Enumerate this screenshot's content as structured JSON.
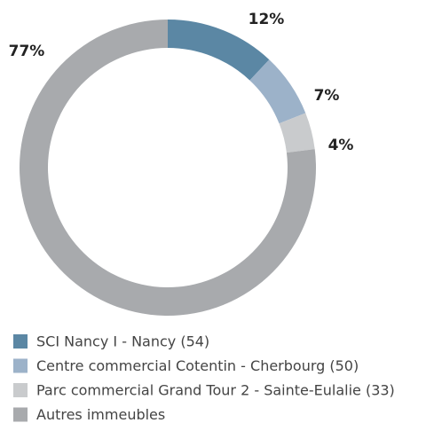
{
  "chart_data": {
    "type": "donut",
    "categories": [
      "SCI Nancy I - Nancy (54)",
      "Centre commercial Cotentin - Cherbourg (50)",
      "Parc commercial Grand Tour 2 - Sainte-Eulalie (33)",
      "Autres immeubles"
    ],
    "values": [
      12,
      7,
      4,
      77
    ],
    "value_labels": [
      "12%",
      "7%",
      "4%",
      "77%"
    ],
    "colors": [
      "#5b87a4",
      "#9cb2c9",
      "#c9cbcd",
      "#a8aaad"
    ],
    "legend": "bottom"
  }
}
